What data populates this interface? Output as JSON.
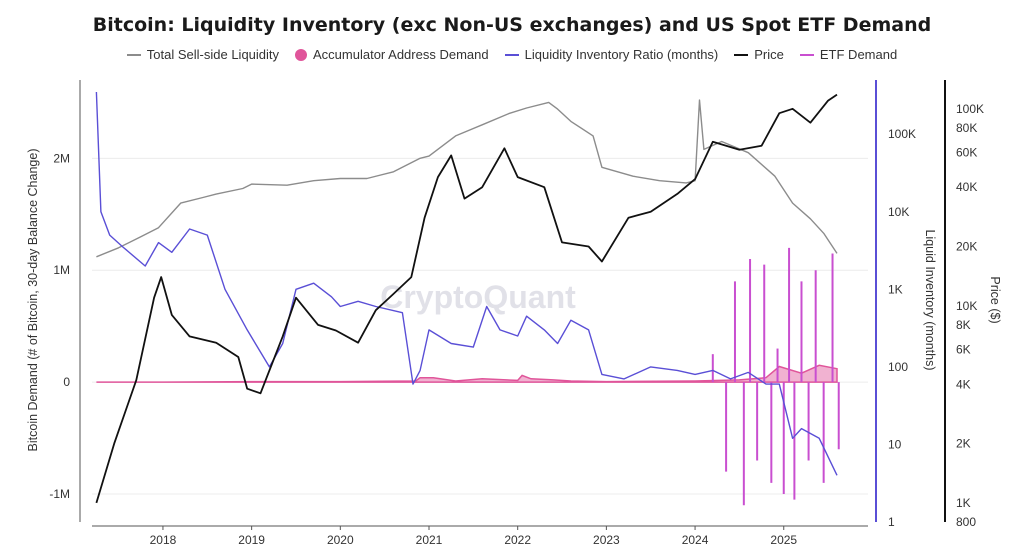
{
  "chart_data": {
    "type": "line",
    "title": "Bitcoin: Liquidity Inventory (exc Non-US exchanges) and US Spot ETF Demand",
    "watermark": "CryptoQuant",
    "legend": [
      {
        "key": "sellside",
        "label": "Total Sell-side Liquidity",
        "color": "#8c8c8c",
        "marker": "line"
      },
      {
        "key": "accum",
        "label": "Accumulator Address Demand",
        "color": "#e0559a",
        "marker": "dot"
      },
      {
        "key": "ratio",
        "label": "Liquidity Inventory Ratio (months)",
        "color": "#5a4fd6",
        "marker": "line"
      },
      {
        "key": "price",
        "label": "Price",
        "color": "#111111",
        "marker": "line"
      },
      {
        "key": "etf",
        "label": "ETF Demand",
        "color": "#c94fd0",
        "marker": "line"
      }
    ],
    "x_ticks": [
      "2018",
      "2019",
      "2020",
      "2021",
      "2022",
      "2023",
      "2024",
      "2025"
    ],
    "xlim": [
      2017.2,
      2025.95
    ],
    "axes": {
      "left": {
        "title": "Bitcoin Demand (# of Bitcoin, 30-day Balance Change)",
        "ticks": [
          "-1M",
          "0",
          "1M",
          "2M"
        ],
        "tick_values": [
          -1000000,
          0,
          1000000,
          2000000
        ],
        "ylim": [
          -1250000,
          2700000
        ],
        "scale": "linear"
      },
      "right_inner": {
        "title": "Liquid Inventory (months)",
        "ticks": [
          "1",
          "10",
          "100",
          "1K",
          "10K",
          "100K"
        ],
        "tick_values": [
          1,
          10,
          100,
          1000,
          10000,
          100000
        ],
        "ylim": [
          1,
          500000
        ],
        "scale": "log"
      },
      "right_outer": {
        "title": "Price ($)",
        "ticks": [
          "800",
          "1K",
          "2K",
          "4K",
          "6K",
          "8K",
          "10K",
          "20K",
          "40K",
          "60K",
          "80K",
          "100K"
        ],
        "tick_values": [
          800,
          1000,
          2000,
          4000,
          6000,
          8000,
          10000,
          20000,
          40000,
          60000,
          80000,
          100000
        ],
        "ylim": [
          800,
          140000
        ],
        "scale": "log"
      }
    },
    "series": [
      {
        "name": "Total Sell-side Liquidity",
        "axis": "left",
        "color": "#8c8c8c",
        "x": [
          2017.25,
          2017.5,
          2017.75,
          2017.95,
          2018.2,
          2018.45,
          2018.6,
          2018.9,
          2019.0,
          2019.4,
          2019.7,
          2020.0,
          2020.3,
          2020.6,
          2020.9,
          2021.0,
          2021.3,
          2021.6,
          2021.9,
          2022.1,
          2022.35,
          2022.45,
          2022.6,
          2022.85,
          2022.95,
          2023.3,
          2023.6,
          2023.9,
          2024.0,
          2024.05,
          2024.1,
          2024.3,
          2024.6,
          2024.9,
          2025.1,
          2025.3,
          2025.45,
          2025.6
        ],
        "values": [
          1120000,
          1200000,
          1300000,
          1380000,
          1600000,
          1650000,
          1680000,
          1730000,
          1770000,
          1760000,
          1800000,
          1820000,
          1820000,
          1880000,
          2000000,
          2020000,
          2200000,
          2300000,
          2400000,
          2450000,
          2500000,
          2440000,
          2330000,
          2200000,
          1920000,
          1840000,
          1800000,
          1780000,
          1800000,
          2520000,
          2080000,
          2150000,
          2050000,
          1840000,
          1600000,
          1460000,
          1330000,
          1150000
        ]
      },
      {
        "name": "Price",
        "axis": "right_outer",
        "color": "#111111",
        "x": [
          2017.25,
          2017.45,
          2017.7,
          2017.9,
          2017.98,
          2018.1,
          2018.3,
          2018.6,
          2018.85,
          2018.95,
          2019.1,
          2019.35,
          2019.5,
          2019.75,
          2019.95,
          2020.2,
          2020.4,
          2020.6,
          2020.8,
          2020.95,
          2021.1,
          2021.25,
          2021.4,
          2021.6,
          2021.85,
          2022.0,
          2022.3,
          2022.5,
          2022.8,
          2022.95,
          2023.25,
          2023.5,
          2023.8,
          2024.0,
          2024.2,
          2024.5,
          2024.75,
          2024.95,
          2025.1,
          2025.3,
          2025.5,
          2025.6
        ],
        "values": [
          1000,
          2000,
          4200,
          11000,
          14000,
          9000,
          7000,
          6500,
          5500,
          3800,
          3600,
          7000,
          11000,
          8000,
          7500,
          6500,
          9500,
          11500,
          14000,
          28000,
          45000,
          58000,
          35000,
          40000,
          63000,
          45000,
          40000,
          21000,
          20000,
          16800,
          28000,
          30000,
          37000,
          44000,
          68000,
          62000,
          65000,
          95000,
          100000,
          85000,
          110000,
          118000
        ]
      },
      {
        "name": "Liquidity Inventory Ratio (months)",
        "axis": "right_inner",
        "color": "#5a4fd6",
        "x": [
          2017.25,
          2017.3,
          2017.4,
          2017.55,
          2017.8,
          2017.95,
          2018.1,
          2018.3,
          2018.5,
          2018.7,
          2018.95,
          2019.2,
          2019.35,
          2019.5,
          2019.7,
          2019.9,
          2020.0,
          2020.2,
          2020.4,
          2020.7,
          2020.82,
          2020.9,
          2021.0,
          2021.25,
          2021.5,
          2021.65,
          2021.8,
          2022.0,
          2022.1,
          2022.3,
          2022.45,
          2022.6,
          2022.8,
          2022.95,
          2023.2,
          2023.5,
          2023.8,
          2024.0,
          2024.2,
          2024.4,
          2024.6,
          2024.8,
          2024.95,
          2025.1,
          2025.2,
          2025.4,
          2025.6
        ],
        "values": [
          350000,
          10000,
          5000,
          3500,
          2000,
          4000,
          3000,
          6000,
          5000,
          1000,
          300,
          100,
          200,
          1000,
          1200,
          800,
          600,
          700,
          600,
          500,
          60,
          90,
          300,
          200,
          180,
          600,
          300,
          250,
          450,
          300,
          200,
          400,
          300,
          80,
          70,
          100,
          90,
          80,
          90,
          70,
          85,
          60,
          60,
          12,
          16,
          12,
          4
        ]
      },
      {
        "name": "Accumulator Address Demand",
        "axis": "left",
        "color": "#e0559a",
        "x": [
          2017.25,
          2018.0,
          2019.0,
          2020.0,
          2020.85,
          2020.9,
          2021.05,
          2021.3,
          2021.6,
          2022.0,
          2022.05,
          2022.15,
          2022.4,
          2022.6,
          2023.0,
          2024.0,
          2024.5,
          2024.8,
          2024.95,
          2025.2,
          2025.4,
          2025.6
        ],
        "values": [
          0,
          0,
          5000,
          5000,
          10000,
          40000,
          40000,
          10000,
          30000,
          15000,
          60000,
          30000,
          20000,
          10000,
          5000,
          10000,
          20000,
          40000,
          140000,
          80000,
          150000,
          120000
        ]
      },
      {
        "name": "ETF Demand",
        "axis": "left",
        "color": "#c94fd0",
        "x": [
          2024.05,
          2024.2,
          2024.35,
          2024.45,
          2024.55,
          2024.62,
          2024.7,
          2024.78,
          2024.86,
          2024.93,
          2025.0,
          2025.06,
          2025.12,
          2025.2,
          2025.28,
          2025.36,
          2025.45,
          2025.55,
          2025.62
        ],
        "values": [
          0,
          250000,
          -800000,
          900000,
          -1100000,
          1100000,
          -700000,
          1050000,
          -900000,
          300000,
          -1000000,
          1200000,
          -1050000,
          900000,
          -700000,
          1000000,
          -900000,
          1150000,
          -600000
        ]
      }
    ]
  }
}
